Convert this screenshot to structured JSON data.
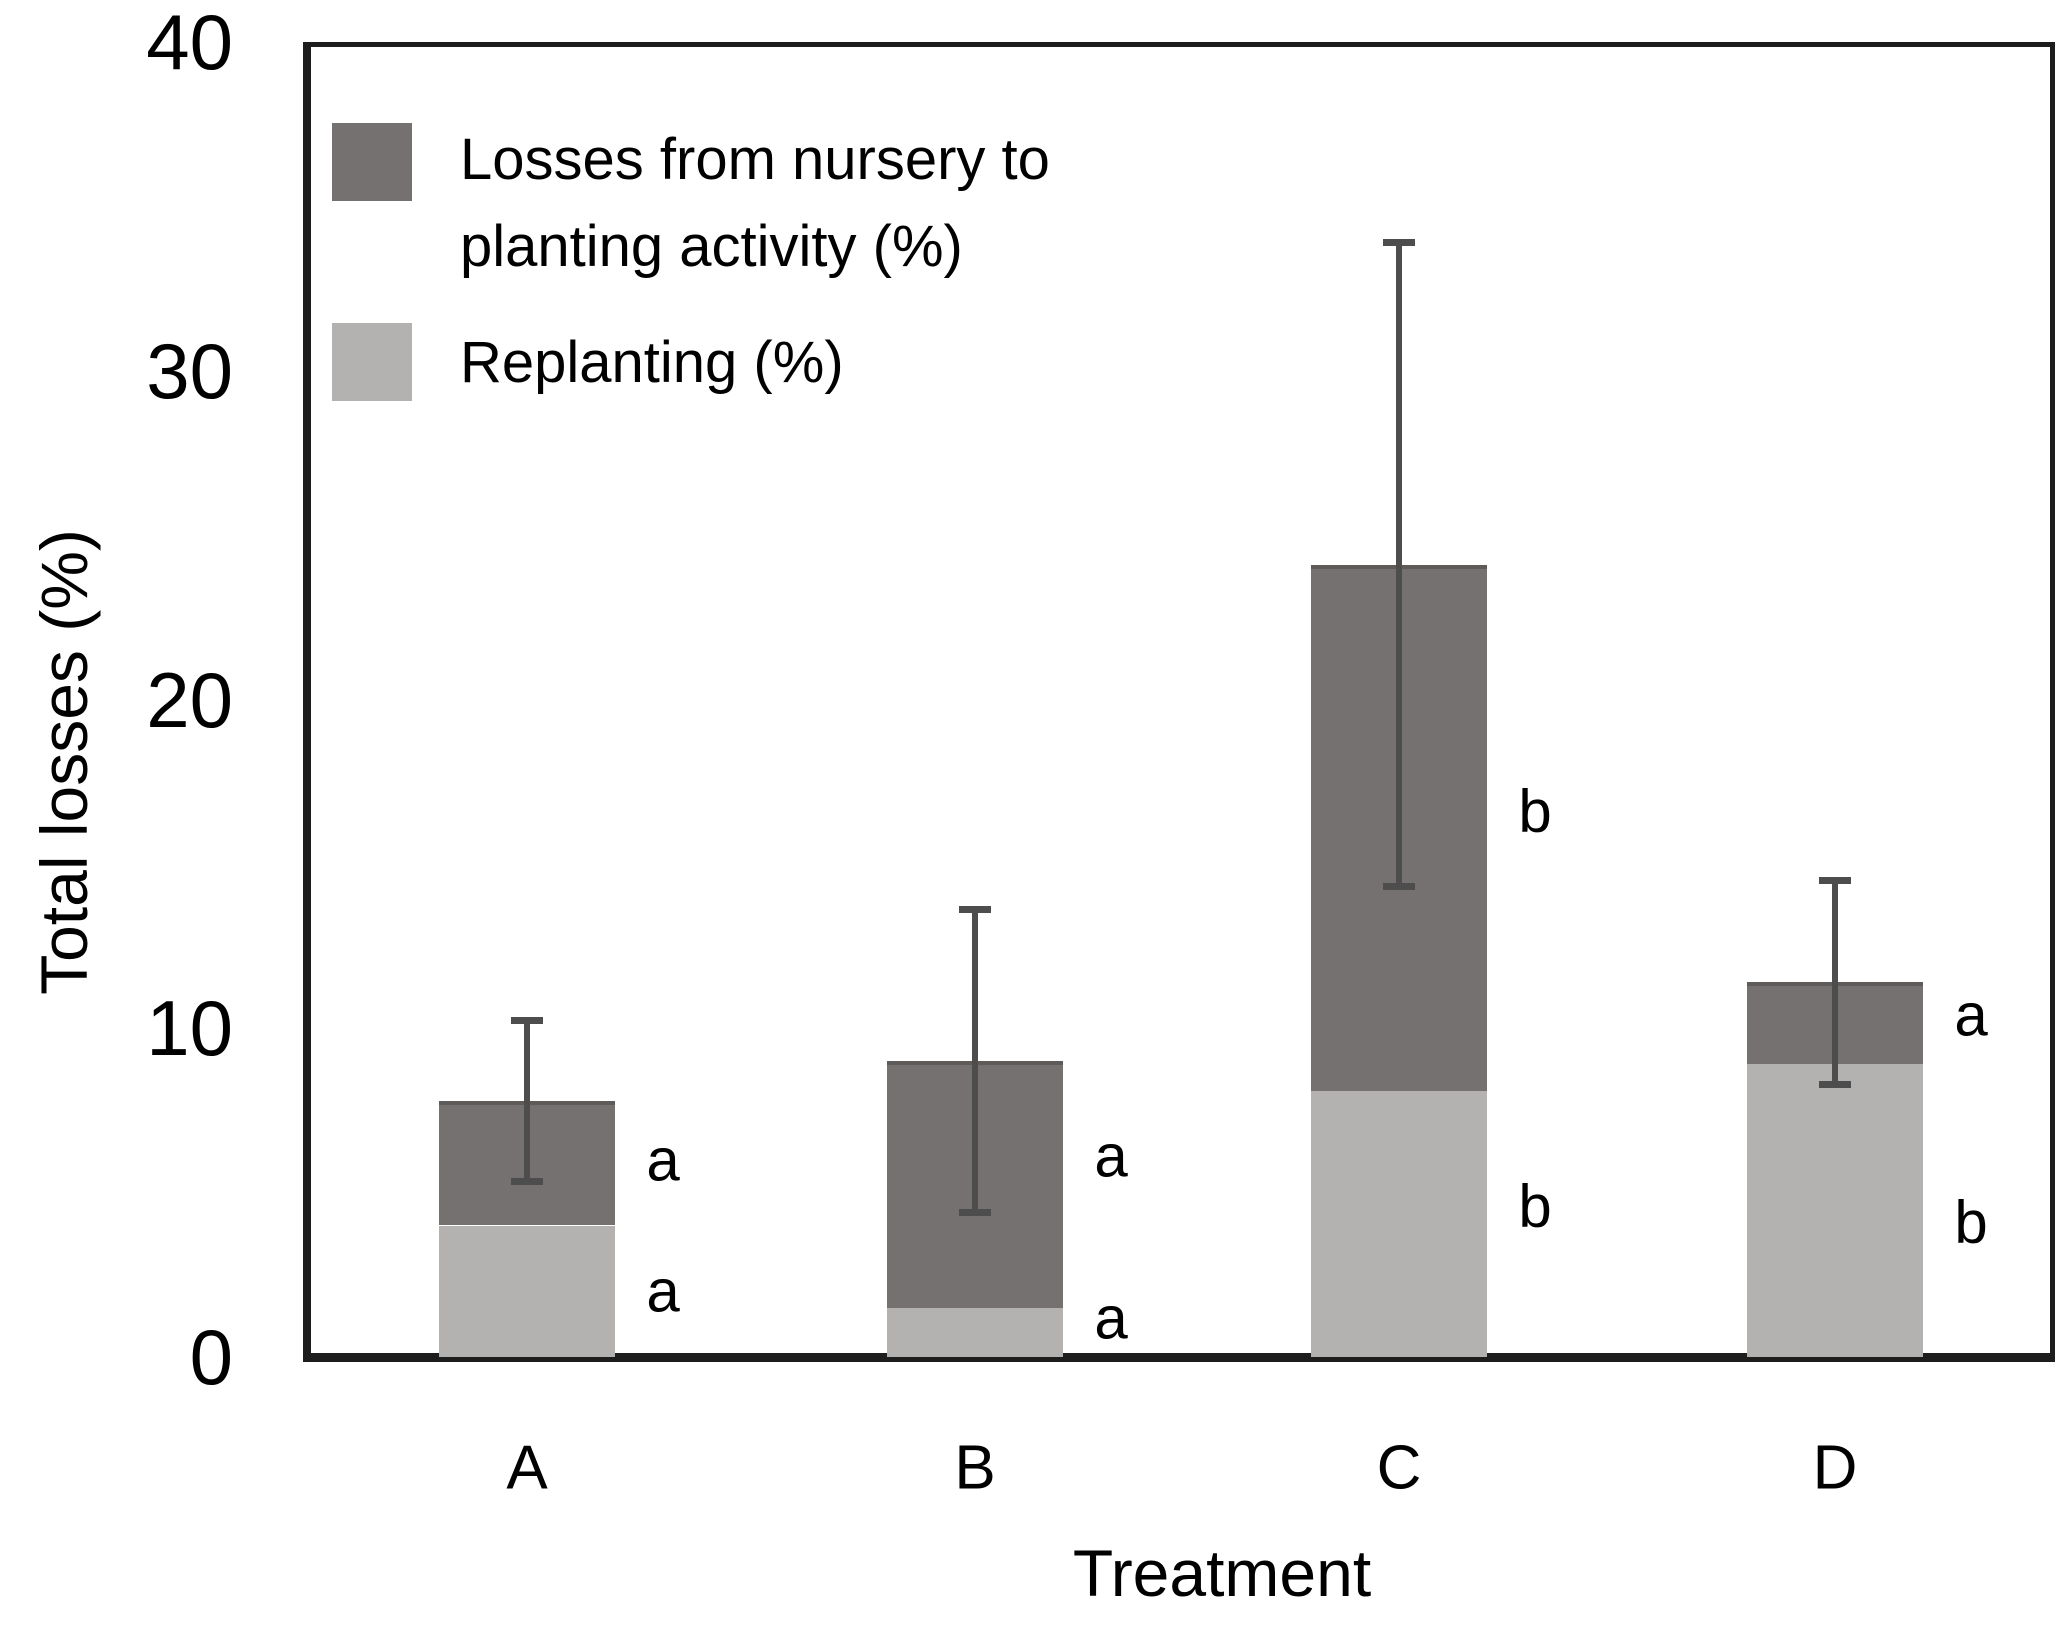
{
  "figure": {
    "background": "#ffffff",
    "y_axis": {
      "title": "Total losses (%)"
    },
    "x_axis": {
      "title": "Treatment"
    },
    "legend": {
      "items": [
        {
          "label": "Losses from nursery to planting activity (%)",
          "color": "#757170"
        },
        {
          "label": "Replanting (%)",
          "color": "#b3b2b0"
        }
      ]
    }
  },
  "chart_data": {
    "type": "bar",
    "stacked": true,
    "title": "",
    "xlabel": "Treatment",
    "ylabel": "Total losses (%)",
    "ylim": [
      0,
      40
    ],
    "yticks": [
      0,
      10,
      20,
      30,
      40
    ],
    "grid": false,
    "legend_position": "top-left-inside",
    "categories": [
      "A",
      "B",
      "C",
      "D"
    ],
    "series": [
      {
        "name": "Replanting (%)",
        "color": "#b3b2b0",
        "values": [
          4.0,
          1.5,
          8.1,
          8.9
        ]
      },
      {
        "name": "Losses from nursery to planting activity (%)",
        "color": "#757170",
        "values": [
          3.8,
          7.5,
          16.0,
          2.5
        ]
      }
    ],
    "totals": [
      7.8,
      9.0,
      24.1,
      11.4
    ],
    "error_bars": {
      "centered_on": "total",
      "plus_minus": [
        2.45,
        4.6,
        9.8,
        3.1
      ]
    },
    "significance_letters": [
      {
        "category": "A",
        "upper": {
          "label": "a",
          "at_value": 6.0
        },
        "lower": {
          "label": "a",
          "at_value": 2.0
        }
      },
      {
        "category": "B",
        "upper": {
          "label": "a",
          "at_value": 6.1
        },
        "lower": {
          "label": "a",
          "at_value": 1.2
        }
      },
      {
        "category": "C",
        "upper": {
          "label": "b",
          "at_value": 16.6
        },
        "lower": {
          "label": "b",
          "at_value": 4.6
        }
      },
      {
        "category": "D",
        "upper": {
          "label": "a",
          "at_value": 10.4
        },
        "lower": {
          "label": "b",
          "at_value": 4.1
        }
      }
    ]
  }
}
